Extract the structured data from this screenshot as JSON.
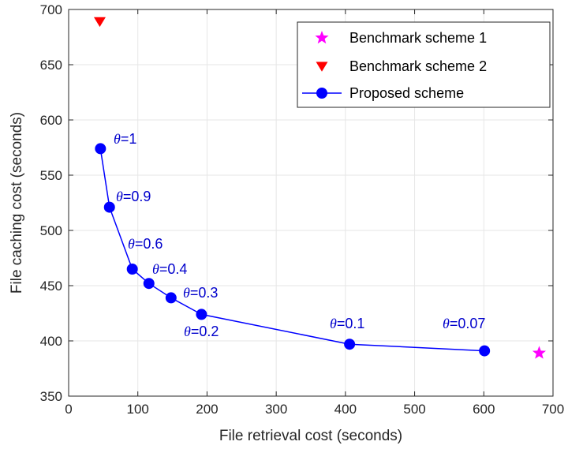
{
  "chart_data": {
    "type": "scatter",
    "xlabel": "File retrieval cost (seconds)",
    "ylabel": "File caching cost (seconds)",
    "xlim": [
      0,
      700
    ],
    "ylim": [
      350,
      700
    ],
    "xticks": [
      0,
      100,
      200,
      300,
      400,
      500,
      600,
      700
    ],
    "yticks": [
      350,
      400,
      450,
      500,
      550,
      600,
      650,
      700
    ],
    "grid": true,
    "legend_position": "top-right",
    "series": [
      {
        "name": "Benchmark scheme 1",
        "marker": "star",
        "color": "#ff00ff",
        "points": [
          {
            "x": 680,
            "y": 389
          }
        ]
      },
      {
        "name": "Benchmark scheme 2",
        "marker": "triangle-down",
        "color": "#ff0000",
        "points": [
          {
            "x": 45,
            "y": 689
          }
        ]
      },
      {
        "name": "Proposed scheme",
        "marker": "circle",
        "line": true,
        "color": "#0000ff",
        "points": [
          {
            "x": 46,
            "y": 574,
            "label": "=1"
          },
          {
            "x": 59,
            "y": 521,
            "label": "=0.9"
          },
          {
            "x": 92,
            "y": 465,
            "label": "=0.6"
          },
          {
            "x": 116,
            "y": 452,
            "label": "=0.4"
          },
          {
            "x": 148,
            "y": 439,
            "label": ""
          },
          {
            "x": 192,
            "y": 424,
            "label": "=0.3"
          },
          {
            "x": 406,
            "y": 397,
            "label": "=0.1"
          },
          {
            "x": 601,
            "y": 391,
            "label": "=0.07"
          }
        ]
      }
    ],
    "annotations": [
      {
        "symbol": "θ",
        "text": "=1"
      },
      {
        "symbol": "θ",
        "text": "=0.9"
      },
      {
        "symbol": "θ",
        "text": "=0.6"
      },
      {
        "symbol": "θ",
        "text": "=0.4"
      },
      {
        "symbol": "θ",
        "text": "=0.3"
      },
      {
        "symbol": "θ",
        "text": "=0.2"
      },
      {
        "symbol": "θ",
        "text": "=0.1"
      },
      {
        "symbol": "θ",
        "text": "=0.07"
      }
    ]
  }
}
